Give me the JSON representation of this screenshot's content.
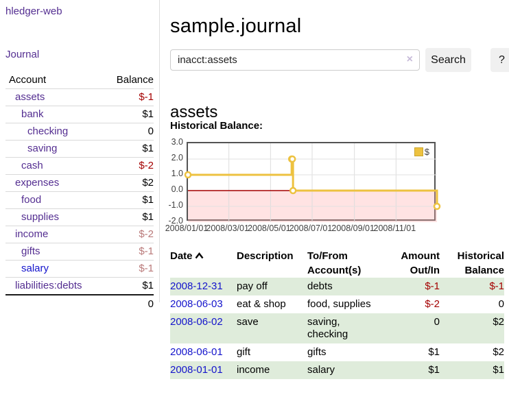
{
  "app": {
    "title": "hledger-web"
  },
  "colors": {
    "accent_purple": "#542e91",
    "link_blue": "#1414cc",
    "negative_strong": "#a40000",
    "negative_muted": "#b97979",
    "row_stripe_green": "#dfecdb",
    "chart_line_gold": "#edc240",
    "chart_negative_region": "#ffaaaa",
    "chart_zero_line": "#a40000"
  },
  "sidebar": {
    "journal_link": "Journal",
    "accounts_table": {
      "headers": {
        "account": "Account",
        "balance": "Balance"
      },
      "rows": [
        {
          "name": "assets",
          "balance": "$-1",
          "depth": 0,
          "bold": true,
          "tone": "neg-strong"
        },
        {
          "name": "bank",
          "balance": "$1",
          "depth": 1,
          "bold": true,
          "tone": "pos"
        },
        {
          "name": "checking",
          "balance": "0",
          "depth": 2,
          "bold": true,
          "tone": "pos"
        },
        {
          "name": "saving",
          "balance": "$1",
          "depth": 2,
          "bold": true,
          "tone": "pos"
        },
        {
          "name": "cash",
          "balance": "$-2",
          "depth": 1,
          "bold": true,
          "tone": "neg-strong"
        },
        {
          "name": "expenses",
          "balance": "$2",
          "depth": 0,
          "bold": false,
          "tone": "pos"
        },
        {
          "name": "food",
          "balance": "$1",
          "depth": 1,
          "bold": false,
          "tone": "pos"
        },
        {
          "name": "supplies",
          "balance": "$1",
          "depth": 1,
          "bold": false,
          "tone": "pos"
        },
        {
          "name": "income",
          "balance": "$-2",
          "depth": 0,
          "bold": false,
          "tone": "neg-muted"
        },
        {
          "name": "gifts",
          "balance": "$-1",
          "depth": 1,
          "bold": false,
          "tone": "neg-muted"
        },
        {
          "name": "salary",
          "balance": "$-1",
          "depth": 1,
          "bold": false,
          "tone": "neg-muted",
          "link_color": "blue"
        },
        {
          "name": "liabilities:debts",
          "balance": "$1",
          "depth": 0,
          "bold": false,
          "tone": "pos"
        }
      ],
      "total": "0"
    }
  },
  "header": {
    "title": "sample.journal"
  },
  "search": {
    "value": "inacct:assets",
    "clear_icon": "×",
    "button_label": "Search",
    "help_label": "?"
  },
  "account_page": {
    "title": "assets",
    "chart_label": "Historical Balance:"
  },
  "chart_data": {
    "type": "line",
    "style": "step-after",
    "title": "Historical Balance:",
    "series": [
      {
        "name": "$",
        "color": "#edc240",
        "points": [
          [
            "2008-01-01",
            1
          ],
          [
            "2008-06-01",
            2
          ],
          [
            "2008-06-02",
            2
          ],
          [
            "2008-06-03",
            0
          ],
          [
            "2008-12-31",
            -1
          ]
        ]
      }
    ],
    "x_range": [
      "2008-01-01",
      "2008-12-31"
    ],
    "ylim": [
      -2,
      3
    ],
    "yticks": [
      3.0,
      2.0,
      1.0,
      0.0,
      -1.0,
      -2.0
    ],
    "ytick_labels": [
      "3.0",
      "2.0",
      "1.0",
      "0.0",
      "-1.0",
      "-2.0"
    ],
    "xtick_labels": [
      "2008/01/01",
      "2008/03/01",
      "2008/05/01",
      "2008/07/01",
      "2008/09/01",
      "2008/11/01"
    ],
    "grid": true,
    "legend_position": "top-right",
    "legend_label": "$",
    "negative_region": true
  },
  "register_table": {
    "headers": {
      "date": "Date",
      "description": "Description",
      "tofrom_lines": [
        "To/From",
        "Account(s)"
      ],
      "amount_lines": [
        "Amount",
        "Out/In"
      ],
      "balance_lines": [
        "Historical",
        "Balance"
      ]
    },
    "rows": [
      {
        "date": "2008-12-31",
        "description": "pay off",
        "accounts": "debts",
        "amount": "$-1",
        "amount_negative": true,
        "balance": "$-1",
        "balance_negative": true
      },
      {
        "date": "2008-06-03",
        "description": "eat & shop",
        "accounts": "food, supplies",
        "amount": "$-2",
        "amount_negative": true,
        "balance": "0",
        "balance_negative": false
      },
      {
        "date": "2008-06-02",
        "description": "save",
        "accounts": "saving,\nchecking",
        "amount": "0",
        "amount_negative": false,
        "balance": "$2",
        "balance_negative": false
      },
      {
        "date": "2008-06-01",
        "description": "gift",
        "accounts": "gifts",
        "amount": "$1",
        "amount_negative": false,
        "balance": "$2",
        "balance_negative": false
      },
      {
        "date": "2008-01-01",
        "description": "income",
        "accounts": "salary",
        "amount": "$1",
        "amount_negative": false,
        "balance": "$1",
        "balance_negative": false
      }
    ]
  }
}
